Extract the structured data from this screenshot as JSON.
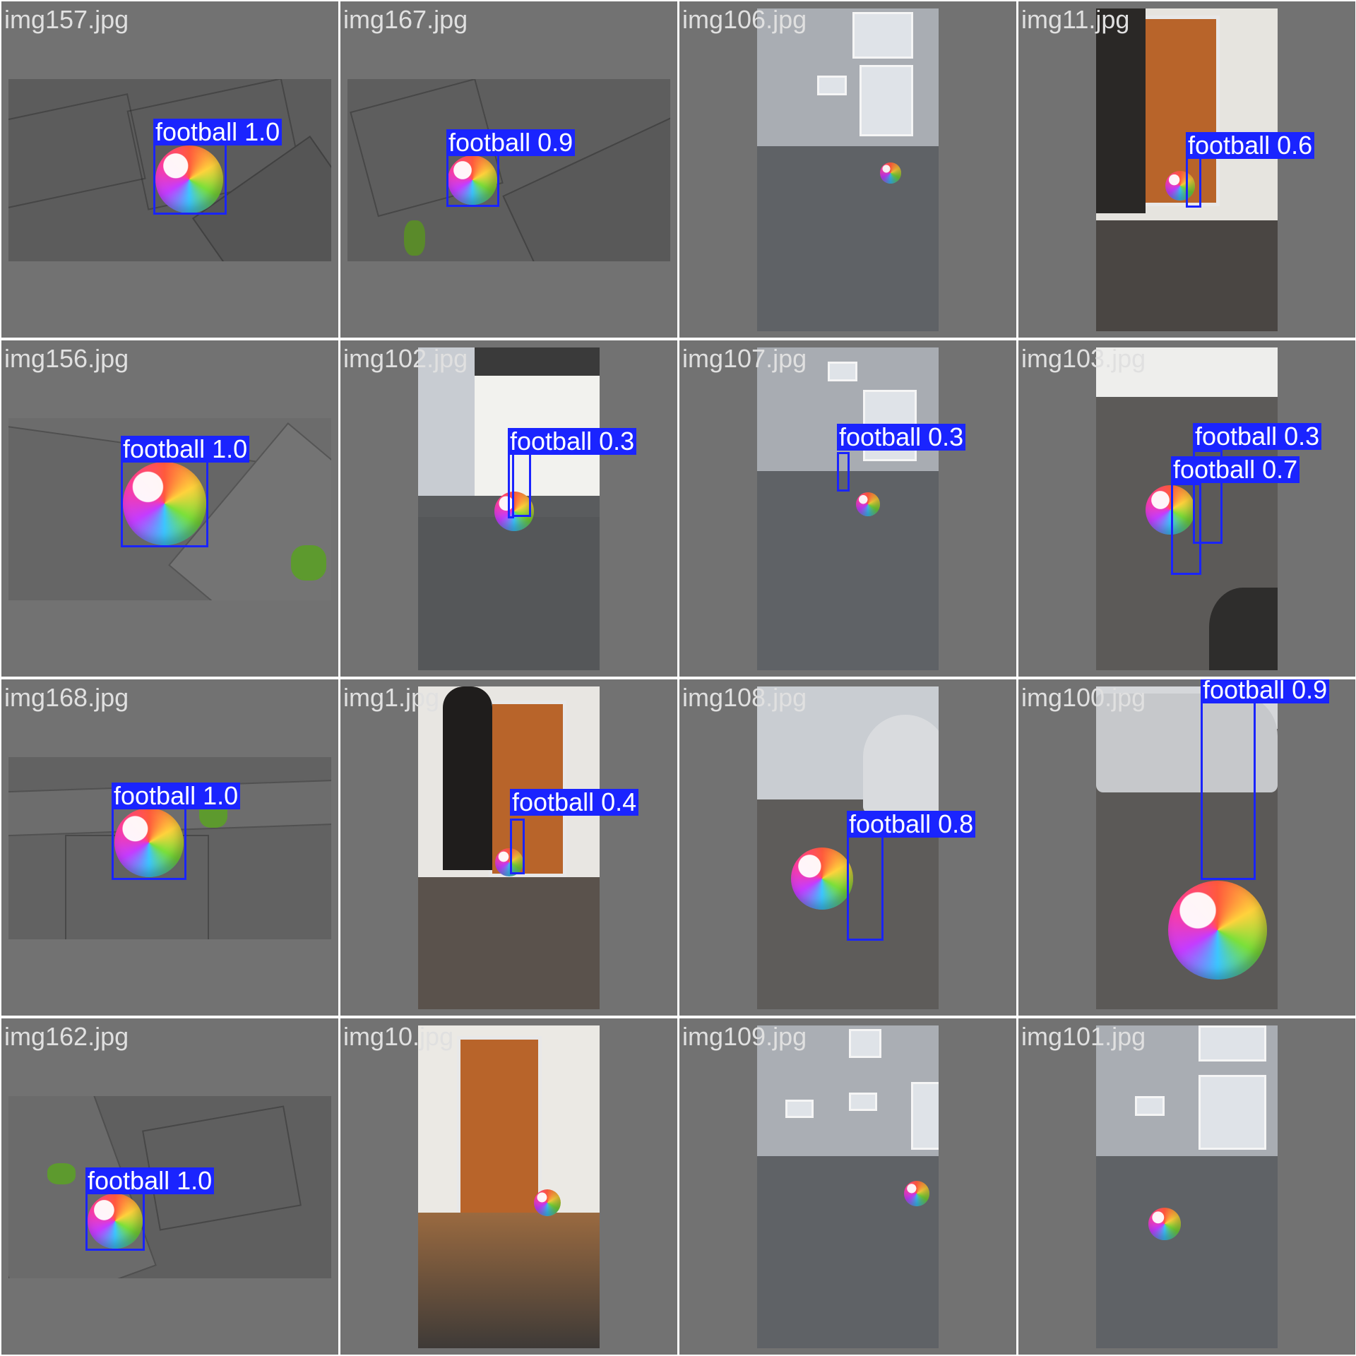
{
  "colors": {
    "background": "#727272",
    "box": "#1a24ff",
    "label_text": "#ffffff",
    "filename_text": "#e0e0e0"
  },
  "tiles": [
    {
      "filename": "img157.jpg",
      "detections": [
        {
          "label": "football 1.0"
        }
      ]
    },
    {
      "filename": "img167.jpg",
      "detections": [
        {
          "label": "football 0.9"
        }
      ]
    },
    {
      "filename": "img106.jpg",
      "detections": []
    },
    {
      "filename": "img11.jpg",
      "detections": [
        {
          "label": "football 0.6"
        }
      ]
    },
    {
      "filename": "img156.jpg",
      "detections": [
        {
          "label": "football 1.0"
        }
      ]
    },
    {
      "filename": "img102.jpg",
      "detections": [
        {
          "label": "football 0.3"
        }
      ]
    },
    {
      "filename": "img107.jpg",
      "detections": [
        {
          "label": "football 0.3"
        }
      ]
    },
    {
      "filename": "img103.jpg",
      "detections": [
        {
          "label": "football 0.3"
        },
        {
          "label": "football 0.7"
        }
      ]
    },
    {
      "filename": "img168.jpg",
      "detections": [
        {
          "label": "football 1.0"
        }
      ]
    },
    {
      "filename": "img1.jpg",
      "detections": [
        {
          "label": "football 0.4"
        }
      ]
    },
    {
      "filename": "img108.jpg",
      "detections": [
        {
          "label": "football 0.8"
        }
      ]
    },
    {
      "filename": "img100.jpg",
      "detections": [
        {
          "label": "football 0.9"
        }
      ]
    },
    {
      "filename": "img162.jpg",
      "detections": [
        {
          "label": "football 1.0"
        }
      ]
    },
    {
      "filename": "img10.jpg",
      "detections": []
    },
    {
      "filename": "img109.jpg",
      "detections": []
    },
    {
      "filename": "img101.jpg",
      "detections": []
    }
  ]
}
